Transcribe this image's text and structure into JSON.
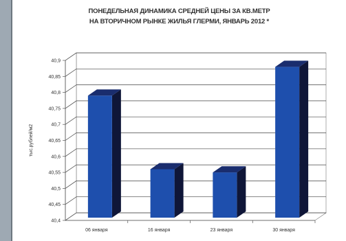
{
  "chart_data": {
    "type": "bar",
    "title_line_1": "ПОНЕДЕЛЬНАЯ ДИНАМИКА СРЕДНЕЙ ЦЕНЫ ЗА КВ.МЕТР",
    "title_line_2": "НА ВТОРИЧНОМ РЫНКЕ ЖИЛЬЯ ГЛЕРМИ, ЯНВАРЬ 2012 *",
    "ylabel": "тыс.рублей/м2",
    "xlabel": "",
    "categories": [
      "06 января",
      "16 января",
      "23 января",
      "30 января"
    ],
    "values": [
      40.79,
      40.56,
      40.55,
      40.88
    ],
    "ylim": [
      40.4,
      40.9
    ],
    "yticks": [
      "40,4",
      "40,45",
      "40,5",
      "40,55",
      "40,6",
      "40,65",
      "40,7",
      "40,75",
      "40,8",
      "40,85",
      "40,9"
    ],
    "grid": true,
    "legend": "none",
    "colors": {
      "bar_front": "#1e4fad",
      "bar_top": "#1a2d6e",
      "bar_side": "#0f1638",
      "gridline": "#444444",
      "wall": "#ffffff",
      "floor": "#ffffff"
    }
  }
}
